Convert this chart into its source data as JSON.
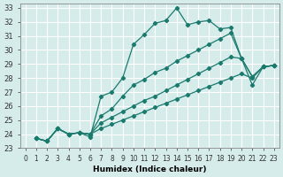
{
  "xlabel": "Humidex (Indice chaleur)",
  "ylabel": "",
  "bg_color": "#d6ecea",
  "grid_color": "#ffffff",
  "line_color": "#1a7a6e",
  "xlim": [
    0,
    23
  ],
  "ylim": [
    23,
    33
  ],
  "xticks": [
    0,
    1,
    2,
    3,
    4,
    5,
    6,
    7,
    8,
    9,
    10,
    11,
    12,
    13,
    14,
    15,
    16,
    17,
    18,
    19,
    20,
    21,
    22,
    23
  ],
  "yticks": [
    23,
    24,
    25,
    26,
    27,
    28,
    29,
    30,
    31,
    32,
    33
  ],
  "series": [
    [
      23.7,
      23.5,
      24.4,
      24.0,
      24.1,
      23.8,
      26.7,
      27.0,
      28.0,
      30.4,
      31.1,
      31.9,
      32.1,
      33.0,
      31.8,
      32.0,
      32.1,
      31.5,
      31.6,
      29.4,
      28.1,
      28.8,
      28.9
    ],
    [
      23.7,
      23.5,
      24.4,
      24.0,
      24.1,
      24.0,
      25.3,
      25.8,
      26.7,
      27.5,
      27.9,
      28.4,
      28.7,
      29.2,
      29.6,
      30.0,
      30.4,
      30.8,
      31.2,
      29.4,
      27.5,
      28.8,
      28.9
    ],
    [
      23.7,
      23.5,
      24.4,
      24.0,
      24.1,
      24.0,
      24.8,
      25.2,
      25.6,
      26.0,
      26.4,
      26.7,
      27.1,
      27.5,
      27.9,
      28.3,
      28.7,
      29.1,
      29.5,
      29.4,
      28.1,
      28.8,
      28.9
    ],
    [
      23.7,
      23.5,
      24.4,
      24.0,
      24.1,
      24.0,
      24.4,
      24.7,
      25.0,
      25.3,
      25.6,
      25.9,
      26.2,
      26.5,
      26.8,
      27.1,
      27.4,
      27.7,
      28.0,
      28.3,
      28.0,
      28.8,
      28.9
    ]
  ]
}
